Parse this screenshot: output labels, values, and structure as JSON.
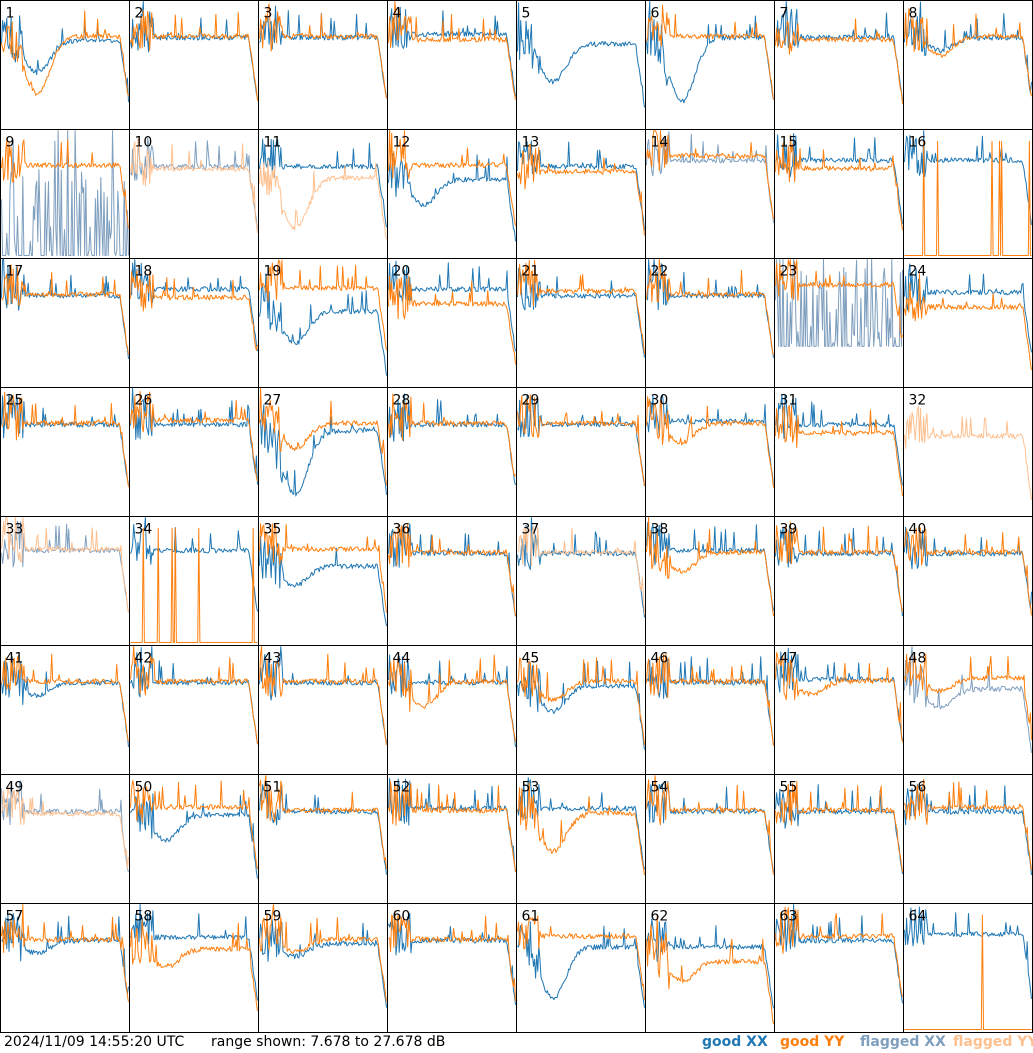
{
  "footer": {
    "timestamp": "2024/11/09 14:55:20 UTC",
    "range": "range shown: 7.678 to 27.678 dB",
    "legend": {
      "good_xx": "good XX",
      "good_yy": "good YY",
      "flagged_xx": "flagged XX",
      "flagged_yy": "flagged YY"
    }
  },
  "colors": {
    "good_xx": "#1f77b4",
    "good_yy": "#ff7f0e",
    "flagged_xx": "#7f9fbf",
    "flagged_yy": "#ffc08f"
  },
  "chart_data": {
    "type": "line",
    "grid": "8x8 small multiples",
    "ylim": [
      7.678,
      27.678
    ],
    "yunit": "dB",
    "series_types": [
      "good XX",
      "good YY",
      "flagged XX",
      "flagged YY"
    ],
    "panels": [
      {
        "id": "1",
        "xx": "good",
        "yy": "good",
        "xx_level": 21.5,
        "yy_level": 22,
        "xx_dip": 0.5,
        "yy_dip": 0.9
      },
      {
        "id": "2",
        "xx": "good",
        "yy": "good",
        "xx_level": 22,
        "yy_level": 22,
        "xx_dip": 0,
        "yy_dip": 0
      },
      {
        "id": "3",
        "xx": "good",
        "yy": "good",
        "xx_level": 22,
        "yy_level": 22,
        "xx_dip": 0,
        "yy_dip": 0
      },
      {
        "id": "4",
        "xx": "good",
        "yy": "good",
        "xx_level": 22.5,
        "yy_level": 21.5,
        "xx_dip": 0,
        "yy_dip": 0
      },
      {
        "id": "5",
        "xx": "good",
        "yy": "none",
        "xx_level": 21,
        "yy_level": null,
        "xx_dip": 0.6,
        "yy_dip": 0
      },
      {
        "id": "6",
        "xx": "good",
        "yy": "good",
        "xx_level": 22,
        "yy_level": 22,
        "xx_dip": 1.0,
        "yy_dip": 0
      },
      {
        "id": "7",
        "xx": "good",
        "yy": "good",
        "xx_level": 22,
        "yy_level": 21.5,
        "xx_dip": 0,
        "yy_dip": 0
      },
      {
        "id": "8",
        "xx": "good",
        "yy": "good",
        "xx_level": 22,
        "yy_level": 22,
        "xx_dip": 0.2,
        "yy_dip": 0.3
      },
      {
        "id": "9",
        "xx": "flagged",
        "yy": "good",
        "xx_level": 8,
        "yy_level": 22,
        "xx_dip": 0,
        "yy_dip": 0
      },
      {
        "id": "10",
        "xx": "flagged",
        "yy": "flagged",
        "xx_level": 22,
        "yy_level": 21.5,
        "xx_dip": 0,
        "yy_dip": 0
      },
      {
        "id": "11",
        "xx": "good",
        "yy": "flagged",
        "xx_level": 22,
        "yy_level": 20,
        "xx_dip": 0,
        "yy_dip": 0.8
      },
      {
        "id": "12",
        "xx": "good",
        "yy": "good",
        "xx_level": 20,
        "yy_level": 22,
        "xx_dip": 0.4,
        "yy_dip": 0
      },
      {
        "id": "13",
        "xx": "good",
        "yy": "good",
        "xx_level": 22,
        "yy_level": 21,
        "xx_dip": 0,
        "yy_dip": 0
      },
      {
        "id": "14",
        "xx": "flagged",
        "yy": "good",
        "xx_level": 23,
        "yy_level": 23.5,
        "xx_dip": 0,
        "yy_dip": 0
      },
      {
        "id": "15",
        "xx": "good",
        "yy": "good",
        "xx_level": 23,
        "yy_level": 21.5,
        "xx_dip": 0,
        "yy_dip": 0
      },
      {
        "id": "16",
        "xx": "good",
        "yy": "good",
        "xx_level": 23,
        "yy_level": 8,
        "xx_dip": 0,
        "yy_dip": 0
      },
      {
        "id": "17",
        "xx": "good",
        "yy": "good",
        "xx_level": 22,
        "yy_level": 22,
        "xx_dip": 0,
        "yy_dip": 0
      },
      {
        "id": "18",
        "xx": "good",
        "yy": "good",
        "xx_level": 23,
        "yy_level": 21.5,
        "xx_dip": 0,
        "yy_dip": 0
      },
      {
        "id": "19",
        "xx": "good",
        "yy": "good",
        "xx_level": 19.5,
        "yy_level": 23,
        "xx_dip": 0.5,
        "yy_dip": 0
      },
      {
        "id": "20",
        "xx": "good",
        "yy": "good",
        "xx_level": 23,
        "yy_level": 20.5,
        "xx_dip": 0,
        "yy_dip": 0
      },
      {
        "id": "21",
        "xx": "good",
        "yy": "good",
        "xx_level": 22,
        "yy_level": 22.5,
        "xx_dip": 0,
        "yy_dip": 0
      },
      {
        "id": "22",
        "xx": "good",
        "yy": "good",
        "xx_level": 22,
        "yy_level": 22,
        "xx_dip": 0,
        "yy_dip": 0
      },
      {
        "id": "23",
        "xx": "flagged",
        "yy": "good",
        "xx_level": 14,
        "yy_level": 23.5,
        "xx_dip": 0,
        "yy_dip": 0
      },
      {
        "id": "24",
        "xx": "good",
        "yy": "good",
        "xx_level": 22.5,
        "yy_level": 20,
        "xx_dip": 0,
        "yy_dip": 0
      },
      {
        "id": "25",
        "xx": "good",
        "yy": "good",
        "xx_level": 22,
        "yy_level": 22,
        "xx_dip": 0,
        "yy_dip": 0
      },
      {
        "id": "26",
        "xx": "good",
        "yy": "good",
        "xx_level": 22,
        "yy_level": 22.5,
        "xx_dip": 0,
        "yy_dip": 0
      },
      {
        "id": "27",
        "xx": "good",
        "yy": "good",
        "xx_level": 21,
        "yy_level": 22,
        "xx_dip": 1.0,
        "yy_dip": 0.4
      },
      {
        "id": "28",
        "xx": "good",
        "yy": "good",
        "xx_level": 22,
        "yy_level": 22,
        "xx_dip": 0,
        "yy_dip": 0
      },
      {
        "id": "29",
        "xx": "good",
        "yy": "good",
        "xx_level": 22,
        "yy_level": 22,
        "xx_dip": 0,
        "yy_dip": 0
      },
      {
        "id": "30",
        "xx": "good",
        "yy": "good",
        "xx_level": 22.5,
        "yy_level": 22,
        "xx_dip": 0,
        "yy_dip": 0.3
      },
      {
        "id": "31",
        "xx": "good",
        "yy": "good",
        "xx_level": 22,
        "yy_level": 20.5,
        "xx_dip": 0,
        "yy_dip": 0
      },
      {
        "id": "32",
        "xx": "none",
        "yy": "flagged",
        "xx_level": null,
        "yy_level": 20,
        "xx_dip": 0,
        "yy_dip": 0
      },
      {
        "id": "33",
        "xx": "flagged",
        "yy": "flagged",
        "xx_level": 22.5,
        "yy_level": 22.5,
        "xx_dip": 0,
        "yy_dip": 0
      },
      {
        "id": "34",
        "xx": "good",
        "yy": "good",
        "xx_level": 22.5,
        "yy_level": 8,
        "xx_dip": 0,
        "yy_dip": 0
      },
      {
        "id": "35",
        "xx": "good",
        "yy": "good",
        "xx_level": 20,
        "yy_level": 22.5,
        "xx_dip": 0.3,
        "yy_dip": 0
      },
      {
        "id": "36",
        "xx": "good",
        "yy": "good",
        "xx_level": 22,
        "yy_level": 22,
        "xx_dip": 0,
        "yy_dip": 0
      },
      {
        "id": "37",
        "xx": "good",
        "yy": "flagged",
        "xx_level": 22,
        "yy_level": 22,
        "xx_dip": 0,
        "yy_dip": 0
      },
      {
        "id": "38",
        "xx": "good",
        "yy": "good",
        "xx_level": 22.5,
        "yy_level": 22,
        "xx_dip": 0,
        "yy_dip": 0.3
      },
      {
        "id": "39",
        "xx": "good",
        "yy": "good",
        "xx_level": 22,
        "yy_level": 22,
        "xx_dip": 0,
        "yy_dip": 0
      },
      {
        "id": "40",
        "xx": "good",
        "yy": "good",
        "xx_level": 22,
        "yy_level": 22,
        "xx_dip": 0,
        "yy_dip": 0
      },
      {
        "id": "41",
        "xx": "good",
        "yy": "good",
        "xx_level": 22,
        "yy_level": 22,
        "xx_dip": 0.2,
        "yy_dip": 0
      },
      {
        "id": "42",
        "xx": "good",
        "yy": "good",
        "xx_level": 22,
        "yy_level": 22,
        "xx_dip": 0,
        "yy_dip": 0
      },
      {
        "id": "43",
        "xx": "good",
        "yy": "good",
        "xx_level": 22,
        "yy_level": 22,
        "xx_dip": 0,
        "yy_dip": 0
      },
      {
        "id": "44",
        "xx": "good",
        "yy": "good",
        "xx_level": 22,
        "yy_level": 22,
        "xx_dip": 0,
        "yy_dip": 0.4
      },
      {
        "id": "45",
        "xx": "good",
        "yy": "good",
        "xx_level": 21.5,
        "yy_level": 22,
        "xx_dip": 0.4,
        "yy_dip": 0.3
      },
      {
        "id": "46",
        "xx": "good",
        "yy": "good",
        "xx_level": 22,
        "yy_level": 22,
        "xx_dip": 0,
        "yy_dip": 0
      },
      {
        "id": "47",
        "xx": "good",
        "yy": "good",
        "xx_level": 22.5,
        "yy_level": 22,
        "xx_dip": 0,
        "yy_dip": 0.2
      },
      {
        "id": "48",
        "xx": "flagged",
        "yy": "good",
        "xx_level": 21,
        "yy_level": 22.5,
        "xx_dip": 0.3,
        "yy_dip": 0.2
      },
      {
        "id": "49",
        "xx": "flagged",
        "yy": "flagged",
        "xx_level": 22,
        "yy_level": 21.5,
        "xx_dip": 0,
        "yy_dip": 0
      },
      {
        "id": "50",
        "xx": "good",
        "yy": "good",
        "xx_level": 21.5,
        "yy_level": 22.5,
        "xx_dip": 0.4,
        "yy_dip": 0
      },
      {
        "id": "51",
        "xx": "good",
        "yy": "good",
        "xx_level": 22,
        "yy_level": 22,
        "xx_dip": 0,
        "yy_dip": 0
      },
      {
        "id": "52",
        "xx": "good",
        "yy": "good",
        "xx_level": 22.5,
        "yy_level": 22,
        "xx_dip": 0,
        "yy_dip": 0
      },
      {
        "id": "53",
        "xx": "good",
        "yy": "good",
        "xx_level": 22.5,
        "yy_level": 21.5,
        "xx_dip": 0,
        "yy_dip": 0.6
      },
      {
        "id": "54",
        "xx": "good",
        "yy": "good",
        "xx_level": 22,
        "yy_level": 22,
        "xx_dip": 0,
        "yy_dip": 0
      },
      {
        "id": "55",
        "xx": "good",
        "yy": "good",
        "xx_level": 22,
        "yy_level": 22,
        "xx_dip": 0,
        "yy_dip": 0
      },
      {
        "id": "56",
        "xx": "good",
        "yy": "good",
        "xx_level": 22,
        "yy_level": 22.5,
        "xx_dip": 0,
        "yy_dip": 0
      },
      {
        "id": "57",
        "xx": "good",
        "yy": "good",
        "xx_level": 22,
        "yy_level": 22,
        "xx_dip": 0.2,
        "yy_dip": 0
      },
      {
        "id": "58",
        "xx": "good",
        "yy": "good",
        "xx_level": 22.5,
        "yy_level": 20.5,
        "xx_dip": 0,
        "yy_dip": 0.3
      },
      {
        "id": "59",
        "xx": "good",
        "yy": "good",
        "xx_level": 21.5,
        "yy_level": 22,
        "xx_dip": 0.2,
        "yy_dip": 0.2
      },
      {
        "id": "60",
        "xx": "good",
        "yy": "good",
        "xx_level": 22,
        "yy_level": 22,
        "xx_dip": 0,
        "yy_dip": 0
      },
      {
        "id": "61",
        "xx": "good",
        "yy": "good",
        "xx_level": 21,
        "yy_level": 22.5,
        "xx_dip": 0.8,
        "yy_dip": 0
      },
      {
        "id": "62",
        "xx": "good",
        "yy": "good",
        "xx_level": 21,
        "yy_level": 18.5,
        "xx_dip": 0,
        "yy_dip": 0.3
      },
      {
        "id": "63",
        "xx": "good",
        "yy": "good",
        "xx_level": 22,
        "yy_level": 22.5,
        "xx_dip": 0,
        "yy_dip": 0
      },
      {
        "id": "64",
        "xx": "good",
        "yy": "good",
        "xx_level": 23,
        "yy_level": 8,
        "xx_dip": 0,
        "yy_dip": 0
      }
    ]
  }
}
